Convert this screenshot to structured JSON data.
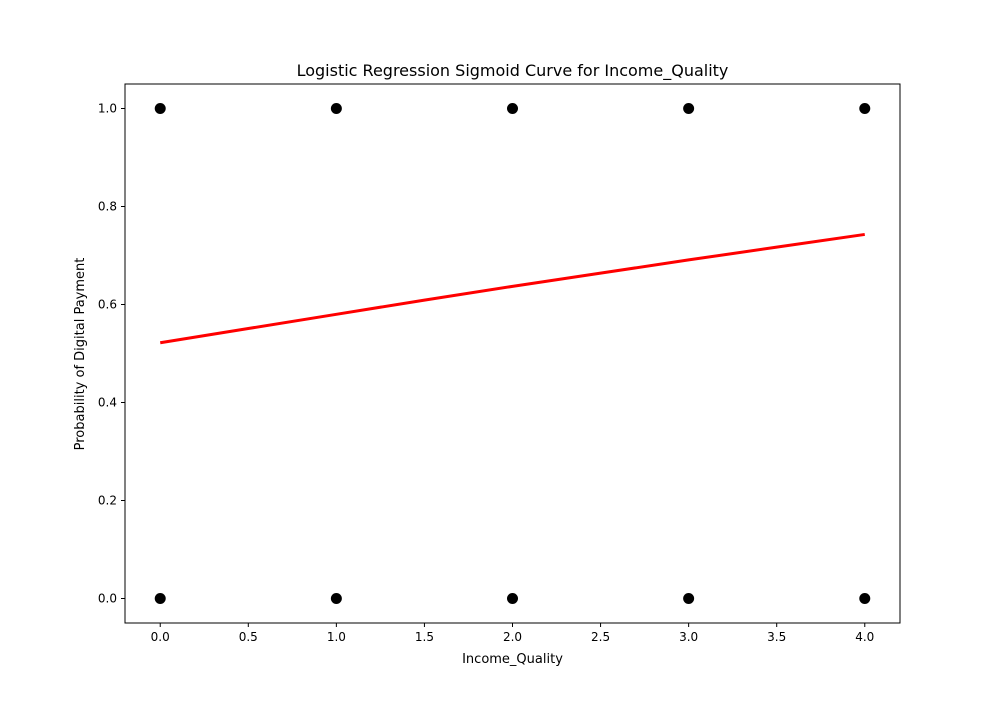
{
  "chart_data": {
    "type": "scatter",
    "title": "Logistic Regression Sigmoid Curve for Income_Quality",
    "xlabel": "Income_Quality",
    "ylabel": "Probability of Digital Payment",
    "xlim": [
      -0.2,
      4.2
    ],
    "ylim": [
      -0.05,
      1.05
    ],
    "x_ticks": [
      0.0,
      0.5,
      1.0,
      1.5,
      2.0,
      2.5,
      3.0,
      3.5,
      4.0
    ],
    "x_tick_labels": [
      "0.0",
      "0.5",
      "1.0",
      "1.5",
      "2.0",
      "2.5",
      "3.0",
      "3.5",
      "4.0"
    ],
    "y_ticks": [
      0.0,
      0.2,
      0.4,
      0.6,
      0.8,
      1.0
    ],
    "y_tick_labels": [
      "0.0",
      "0.2",
      "0.4",
      "0.6",
      "0.8",
      "1.0"
    ],
    "grid": false,
    "series": [
      {
        "kind": "scatter",
        "color": "#000000",
        "points": [
          [
            0,
            1
          ],
          [
            1,
            1
          ],
          [
            2,
            1
          ],
          [
            3,
            1
          ],
          [
            4,
            1
          ],
          [
            0,
            0
          ],
          [
            1,
            0
          ],
          [
            2,
            0
          ],
          [
            3,
            0
          ],
          [
            4,
            0
          ]
        ]
      },
      {
        "kind": "line",
        "color": "#ff0000",
        "x": [
          0,
          0.5,
          1.0,
          1.5,
          2.0,
          2.5,
          3.0,
          3.5,
          4.0
        ],
        "y": [
          0.522,
          0.551,
          0.58,
          0.609,
          0.637,
          0.664,
          0.691,
          0.717,
          0.743
        ]
      }
    ]
  }
}
